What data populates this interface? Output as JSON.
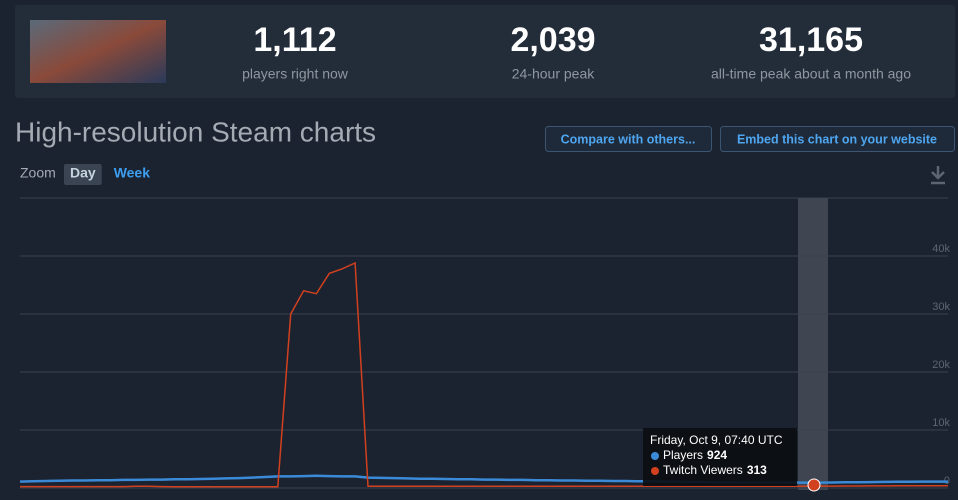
{
  "header": {
    "stats": [
      {
        "value": "1,112",
        "label": "players right now"
      },
      {
        "value": "2,039",
        "label": "24-hour peak"
      },
      {
        "value": "31,165",
        "label": "all-time peak about a month ago"
      }
    ]
  },
  "title": "High-resolution Steam charts",
  "buttons": [
    "Compare with others...",
    "Embed this chart on your website"
  ],
  "zoom": {
    "label": "Zoom",
    "options": [
      "Day",
      "Week"
    ],
    "active": 0
  },
  "chart_data": {
    "type": "line",
    "categories": [
      null,
      null,
      null,
      null,
      null,
      null,
      null,
      null,
      null,
      null,
      null,
      null,
      null,
      null,
      null,
      null,
      null,
      null,
      null,
      null,
      null,
      null,
      null,
      null,
      null,
      null,
      null,
      null,
      null,
      null,
      null,
      null,
      null,
      null,
      null,
      null,
      null,
      null,
      null,
      null,
      null,
      null,
      null,
      null,
      null,
      null,
      null,
      null,
      null,
      null,
      null,
      null,
      null,
      null,
      null,
      null,
      null,
      null,
      null,
      null,
      null,
      null,
      null,
      null,
      null,
      null,
      null,
      null,
      null,
      null,
      null,
      null,
      null
    ],
    "series": [
      {
        "name": "Players",
        "color": "#3b8ad8",
        "values": [
          1100,
          1150,
          1200,
          1250,
          1300,
          1300,
          1350,
          1350,
          1400,
          1400,
          1450,
          1450,
          1500,
          1500,
          1550,
          1600,
          1650,
          1700,
          1800,
          1900,
          2000,
          2000,
          2050,
          2100,
          2050,
          2000,
          2000,
          1800,
          1750,
          1700,
          1650,
          1600,
          1600,
          1550,
          1500,
          1500,
          1450,
          1450,
          1400,
          1400,
          1350,
          1350,
          1300,
          1300,
          1250,
          1250,
          1200,
          1200,
          1150,
          1150,
          1100,
          1100,
          1050,
          1050,
          1000,
          1000,
          950,
          950,
          950,
          950,
          930,
          924,
          930,
          950,
          980,
          1000,
          1020,
          1050,
          1070,
          1080,
          1100,
          1110,
          1112
        ]
      },
      {
        "name": "Twitch Viewers",
        "color": "#d2411f",
        "values": [
          250,
          250,
          250,
          250,
          250,
          250,
          250,
          250,
          250,
          300,
          300,
          250,
          200,
          200,
          200,
          200,
          200,
          200,
          200,
          200,
          200,
          30000,
          34000,
          33500,
          37000,
          37800,
          38800,
          300,
          300,
          300,
          300,
          300,
          300,
          300,
          300,
          300,
          300,
          300,
          300,
          300,
          300,
          300,
          300,
          300,
          300,
          300,
          300,
          300,
          300,
          300,
          300,
          300,
          300,
          300,
          300,
          300,
          300,
          300,
          300,
          300,
          300,
          313,
          320,
          330,
          340,
          350,
          360,
          370,
          380,
          390,
          400,
          400,
          400
        ]
      }
    ],
    "ylim": [
      0,
      50000
    ],
    "yticks": [
      0,
      {
        "value": 10000,
        "label": "10k"
      },
      {
        "value": 20000,
        "label": "20k"
      },
      {
        "value": 30000,
        "label": "30k"
      },
      {
        "value": 40000,
        "label": "40k"
      },
      {
        "value": 50000,
        "label": ""
      }
    ],
    "grid": true,
    "tooltip": {
      "title": "Friday, Oct 9, 07:40 UTC",
      "rows": [
        {
          "series": 0,
          "value": 924
        },
        {
          "series": 1,
          "value": 313
        }
      ]
    }
  }
}
